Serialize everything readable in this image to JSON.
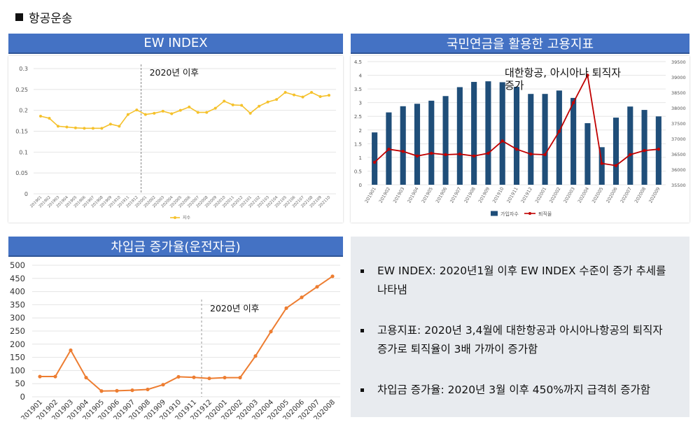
{
  "page": {
    "section_title": "항공운송"
  },
  "colors": {
    "banner": "#4472c4",
    "ew_line": "#f5c12b",
    "emp_bar": "#1f4e79",
    "emp_line": "#c00000",
    "loan_line": "#ed7d31",
    "summary_bg": "#e8ebef"
  },
  "panels": {
    "ew": {
      "banner": "EW INDEX"
    },
    "employment": {
      "banner": "국민연금을 활용한 고용지표"
    },
    "loan": {
      "banner": "차입금 증가율(운전자금)"
    }
  },
  "chart_data": [
    {
      "id": "ew",
      "type": "line",
      "annotation": "2020년 이후",
      "legend": "지수",
      "legend_placement": "bottom-center",
      "grid": true,
      "ylim": [
        0,
        0.3
      ],
      "yticks": [
        "0",
        "0.05",
        "0.1",
        "0.15",
        "0.2",
        "0.25",
        "0.3"
      ],
      "yticks_val": [
        0,
        0.05,
        0.1,
        0.15,
        0.2,
        0.25,
        0.3
      ],
      "divider_after": "201912",
      "categories": [
        "201901",
        "201902",
        "201903",
        "201904",
        "201905",
        "201906",
        "201907",
        "201908",
        "201909",
        "201910",
        "201911",
        "201912",
        "202001",
        "202002",
        "202003",
        "202004",
        "202005",
        "202006",
        "202007",
        "202008",
        "202009",
        "202010",
        "202011",
        "202012",
        "202101",
        "202102",
        "202103",
        "202104",
        "202105",
        "202106",
        "202107",
        "202108",
        "202109",
        "202110"
      ],
      "series": [
        {
          "name": "지수",
          "values": [
            0.186,
            0.181,
            0.162,
            0.16,
            0.158,
            0.157,
            0.157,
            0.157,
            0.167,
            0.162,
            0.19,
            0.201,
            0.19,
            0.193,
            0.198,
            0.192,
            0.2,
            0.208,
            0.195,
            0.195,
            0.205,
            0.222,
            0.213,
            0.212,
            0.193,
            0.21,
            0.22,
            0.226,
            0.243,
            0.237,
            0.232,
            0.243,
            0.233,
            0.236
          ]
        }
      ]
    },
    {
      "id": "employment",
      "type": "bar",
      "annotation": "대한항공, 아시아나 퇴직자 증가",
      "legend_placement": "bottom-center",
      "grid": true,
      "ylim": [
        0,
        4.5
      ],
      "yticks": [
        "0",
        "0.5",
        "1",
        "1.5",
        "2",
        "2.5",
        "3",
        "3.5",
        "4",
        "4.5"
      ],
      "yticks_val": [
        0,
        0.5,
        1,
        1.5,
        2,
        2.5,
        3,
        3.5,
        4,
        4.5
      ],
      "y2lim": [
        35500,
        39500
      ],
      "y2ticks": [
        "35500",
        "36000",
        "36500",
        "37000",
        "37500",
        "38000",
        "38500",
        "39000",
        "39500"
      ],
      "y2ticks_val": [
        35500,
        36000,
        36500,
        37000,
        37500,
        38000,
        38500,
        39000,
        39500
      ],
      "categories": [
        "201901",
        "201902",
        "201903",
        "201904",
        "201905",
        "201906",
        "201907",
        "201908",
        "201909",
        "201910",
        "201911",
        "201912",
        "202001",
        "202002",
        "202003",
        "202004",
        "202005",
        "202006",
        "202007",
        "202008",
        "202009"
      ],
      "series": [
        {
          "name": "가입자수",
          "kind": "bar",
          "axis": "right",
          "values": [
            37200,
            37850,
            38050,
            38130,
            38230,
            38380,
            38670,
            38840,
            38860,
            38830,
            38680,
            38450,
            38450,
            38560,
            38320,
            37500,
            36720,
            37680,
            38040,
            37930,
            37720
          ]
        },
        {
          "name": "퇴직율",
          "kind": "line",
          "axis": "left",
          "values": [
            0.82,
            1.3,
            1.22,
            1.05,
            1.15,
            1.1,
            1.12,
            1.05,
            1.15,
            1.6,
            1.3,
            1.12,
            1.1,
            1.95,
            3.0,
            4.0,
            0.78,
            0.7,
            1.1,
            1.25,
            1.3
          ]
        }
      ]
    },
    {
      "id": "loan",
      "type": "line",
      "annotation": "2020년 이후",
      "grid": true,
      "ylim": [
        0,
        500
      ],
      "yticks": [
        "0",
        "50",
        "100",
        "150",
        "200",
        "250",
        "300",
        "350",
        "400",
        "450",
        "500"
      ],
      "yticks_val": [
        0,
        50,
        100,
        150,
        200,
        250,
        300,
        350,
        400,
        450,
        500
      ],
      "divider_after": "201912",
      "categories": [
        "201901",
        "201902",
        "201903",
        "201904",
        "201905",
        "201906",
        "201907",
        "201908",
        "201909",
        "201910",
        "201911",
        "201912",
        "202001",
        "202002",
        "202003",
        "202004",
        "202005",
        "202006",
        "202007",
        "202008"
      ],
      "series": [
        {
          "name": "차입금 증가율",
          "values": [
            77,
            77,
            177,
            73,
            22,
            23,
            25,
            28,
            46,
            76,
            74,
            70,
            73,
            73,
            155,
            248,
            337,
            378,
            418,
            458
          ]
        }
      ]
    }
  ],
  "summary": {
    "bullets": [
      "EW INDEX: 2020년1월 이후 EW INDEX 수준이 증가 추세를 나타냄",
      "고용지표: 2020년 3,4월에 대한항공과 아시아나항공의 퇴직자 증가로 퇴직율이 3배 가까이 증가함",
      "차입금 증가율: 2020년 3월 이후 450%까지 급격히 증가함"
    ]
  }
}
